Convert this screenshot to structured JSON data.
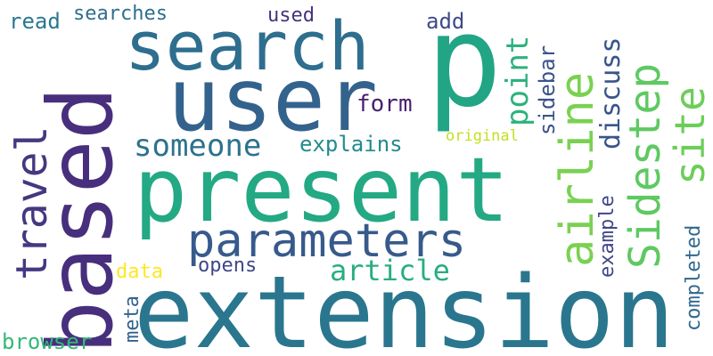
{
  "words": [
    {
      "text": "p",
      "color": "#21a585"
    },
    {
      "text": "extension",
      "color": "#2a768e"
    },
    {
      "text": "present",
      "color": "#23a983"
    },
    {
      "text": "based",
      "color": "#472f7d"
    },
    {
      "text": "user",
      "color": "#33638d"
    },
    {
      "text": "search",
      "color": "#2e6e8e"
    },
    {
      "text": "parameters",
      "color": "#375a8c"
    },
    {
      "text": "airline",
      "color": "#7ad151"
    },
    {
      "text": "Sidestep",
      "color": "#5ec962"
    },
    {
      "text": "site",
      "color": "#6cce59"
    },
    {
      "text": "travel",
      "color": "#453781"
    },
    {
      "text": "someone",
      "color": "#2c728e"
    },
    {
      "text": "point",
      "color": "#2db27d"
    },
    {
      "text": "discuss",
      "color": "#39558c"
    },
    {
      "text": "article",
      "color": "#28ae80"
    },
    {
      "text": "explains",
      "color": "#238a8d"
    },
    {
      "text": "form",
      "color": "#481f70"
    },
    {
      "text": "searches",
      "color": "#2e6f8e"
    },
    {
      "text": "read",
      "color": "#2a788e"
    },
    {
      "text": "used",
      "color": "#46327e"
    },
    {
      "text": "add",
      "color": "#3e4a89"
    },
    {
      "text": "sidebar",
      "color": "#3a538b"
    },
    {
      "text": "original",
      "color": "#c2df23"
    },
    {
      "text": "example",
      "color": "#404688"
    },
    {
      "text": "completed",
      "color": "#31688e"
    },
    {
      "text": "data",
      "color": "#fde725"
    },
    {
      "text": "opens",
      "color": "#3f4788"
    },
    {
      "text": "meta",
      "color": "#33638d"
    },
    {
      "text": "browser",
      "color": "#35b779"
    }
  ]
}
